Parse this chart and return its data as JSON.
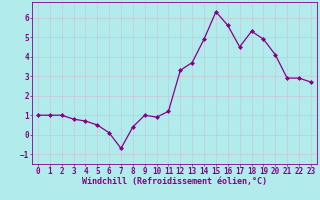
{
  "x": [
    0,
    1,
    2,
    3,
    4,
    5,
    6,
    7,
    8,
    9,
    10,
    11,
    12,
    13,
    14,
    15,
    16,
    17,
    18,
    19,
    20,
    21,
    22,
    23
  ],
  "y": [
    1.0,
    1.0,
    1.0,
    0.8,
    0.7,
    0.5,
    0.1,
    -0.7,
    0.4,
    1.0,
    0.9,
    1.2,
    3.3,
    3.7,
    4.9,
    6.3,
    5.6,
    4.5,
    5.3,
    4.9,
    4.1,
    2.9,
    2.9,
    2.7
  ],
  "line_color": "#880088",
  "marker": "D",
  "markersize": 2.0,
  "linewidth": 0.9,
  "xlabel": "Windchill (Refroidissement éolien,°C)",
  "xlabel_fontsize": 6.0,
  "xlim": [
    -0.5,
    23.5
  ],
  "ylim": [
    -1.5,
    6.8
  ],
  "yticks": [
    -1,
    0,
    1,
    2,
    3,
    4,
    5,
    6
  ],
  "xticks": [
    0,
    1,
    2,
    3,
    4,
    5,
    6,
    7,
    8,
    9,
    10,
    11,
    12,
    13,
    14,
    15,
    16,
    17,
    18,
    19,
    20,
    21,
    22,
    23
  ],
  "background_color": "#b2ebeb",
  "grid_color": "#c8c8d8",
  "tick_color": "#880088",
  "tick_fontsize": 5.5,
  "label_color": "#880088"
}
